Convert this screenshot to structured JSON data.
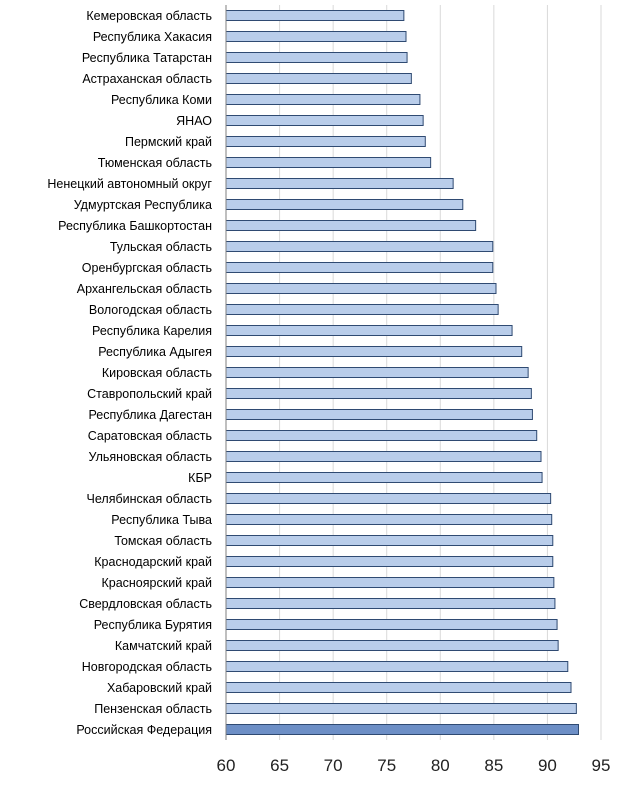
{
  "chart_data": {
    "type": "bar",
    "orientation": "horizontal",
    "title": "",
    "xlabel": "",
    "ylabel": "",
    "xlim": [
      60,
      95
    ],
    "ticks": [
      60,
      65,
      70,
      75,
      80,
      85,
      90,
      95
    ],
    "grid": true,
    "legend": "none",
    "categories": [
      "Кемеровская область",
      "Республика Хакасия",
      "Республика Татарстан",
      "Астраханская область",
      "Республика Коми",
      "ЯНАО",
      "Пермский край",
      "Тюменская область",
      "Ненецкий автономный округ",
      "Удмуртская Республика",
      "Республика Башкортостан",
      "Тульская область",
      "Оренбургская область",
      "Архангельская область",
      "Вологодская область",
      "Республика Карелия",
      "Республика Адыгея",
      "Кировская область",
      "Ставропольский край",
      "Республика Дагестан",
      "Саратовская область",
      "Ульяновская область",
      "КБР",
      "Челябинская область",
      "Республика Тыва",
      "Томская область",
      "Краснодарский край",
      "Красноярский край",
      "Свердловская область",
      "Республика Бурятия",
      "Камчатский край",
      "Новгородская область",
      "Хабаровский край",
      "Пензенская область",
      "Российская Федерация"
    ],
    "values": [
      76.6,
      76.8,
      76.9,
      77.3,
      78.1,
      78.4,
      78.6,
      79.1,
      81.2,
      82.1,
      83.3,
      84.9,
      84.9,
      85.2,
      85.4,
      86.7,
      87.6,
      88.2,
      88.5,
      88.6,
      89.0,
      89.4,
      89.5,
      90.3,
      90.4,
      90.5,
      90.5,
      90.6,
      90.7,
      90.9,
      91.0,
      91.9,
      92.2,
      92.7,
      92.9
    ],
    "highlight_index": 34,
    "colors": {
      "bar": "#b9cdea",
      "bar_highlight": "#6d8fc6",
      "bar_stroke": "#2f4a72"
    }
  }
}
